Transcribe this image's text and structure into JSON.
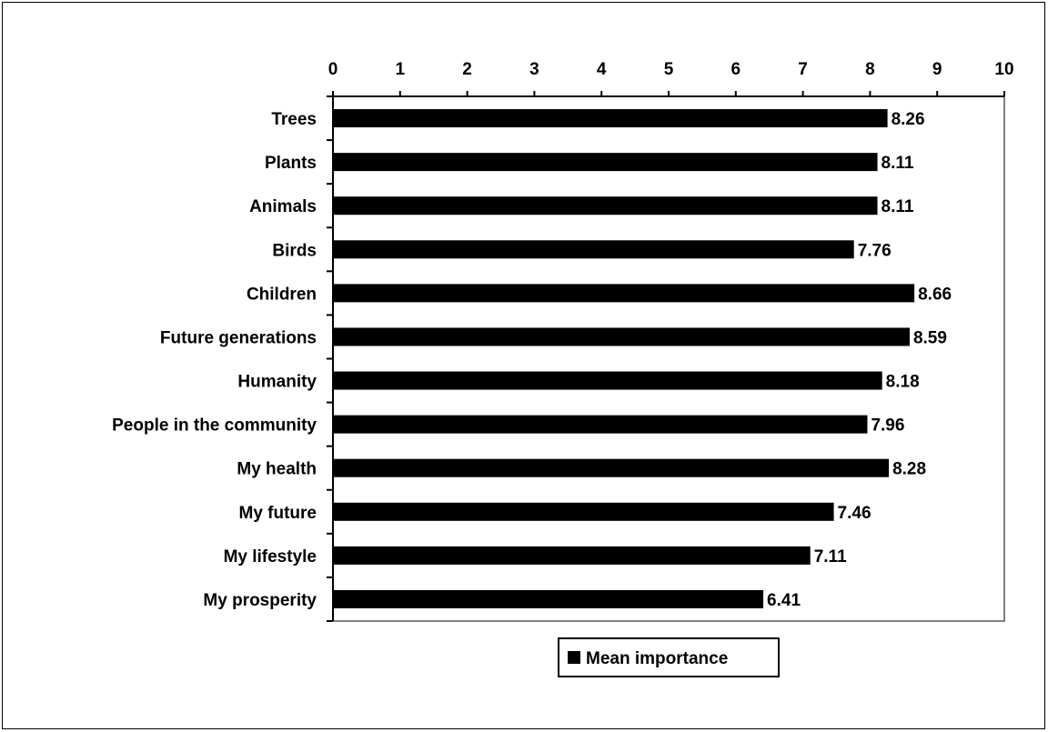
{
  "chart_data": {
    "type": "bar",
    "orientation": "horizontal",
    "categories": [
      "Trees",
      "Plants",
      "Animals",
      "Birds",
      "Children",
      "Future generations",
      "Humanity",
      "People in the community",
      "My health",
      "My future",
      "My lifestyle",
      "My prosperity"
    ],
    "series": [
      {
        "name": "Mean importance",
        "values": [
          8.26,
          8.11,
          8.11,
          7.76,
          8.66,
          8.59,
          8.18,
          7.96,
          8.28,
          7.46,
          7.11,
          6.41
        ]
      }
    ],
    "data_labels": [
      "8.26",
      "8.11",
      "8.11",
      "7.76",
      "8.66",
      "8.59",
      "8.18",
      "7.96",
      "8.28",
      "7.46",
      "7.11",
      "6.41"
    ],
    "xlim": [
      0,
      10
    ],
    "x_ticks": [
      "0",
      "1",
      "2",
      "3",
      "4",
      "5",
      "6",
      "7",
      "8",
      "9",
      "10"
    ],
    "x_axis_position": "top",
    "grid": false,
    "legend_position": "bottom",
    "bar_color": "#000000"
  }
}
